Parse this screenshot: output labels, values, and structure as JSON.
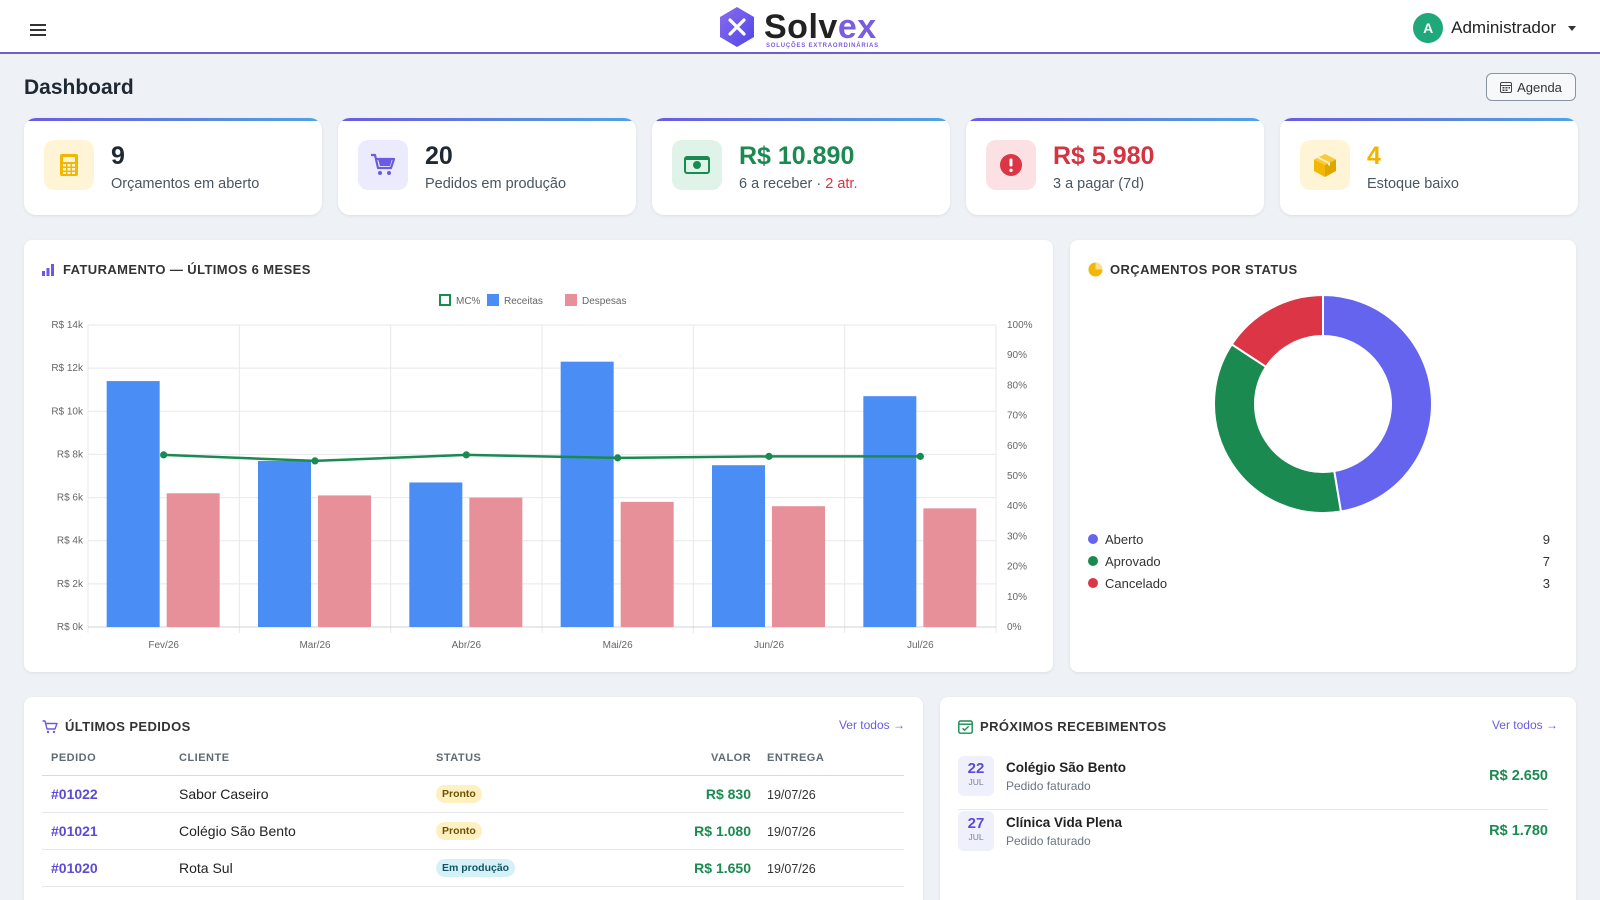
{
  "header": {
    "brand_name_a": "Solv",
    "brand_name_b": "ex",
    "brand_tagline": "SOLUÇÕES EXTRAORDINÁRIAS",
    "user_initial": "A",
    "user_name": "Administrador"
  },
  "page": {
    "title": "Dashboard",
    "agenda_label": "Agenda"
  },
  "kpis": [
    {
      "value": "9",
      "label": "Orçamentos em aberto",
      "icon": "calculator-icon",
      "value_color": "#1f2933"
    },
    {
      "value": "20",
      "label": "Pedidos em produção",
      "icon": "cart-icon",
      "value_color": "#1f2933"
    },
    {
      "value": "R$ 10.890",
      "label": "6 a receber · ",
      "label_late": "2 atr.",
      "icon": "money-icon",
      "value_color": "#1a8a50"
    },
    {
      "value": "R$ 5.980",
      "label": "3 a pagar (7d)",
      "icon": "alert-icon",
      "value_color": "#d63340"
    },
    {
      "value": "4",
      "label": "Estoque baixo",
      "icon": "box-icon",
      "value_color": "#f0b400"
    }
  ],
  "revenue_panel": {
    "title": "Faturamento — últimos 6 meses"
  },
  "status_panel": {
    "title": "Orçamentos por status"
  },
  "chart_data": [
    {
      "type": "bar",
      "title": "Faturamento — últimos 6 meses",
      "categories": [
        "Fev/26",
        "Mar/26",
        "Abr/26",
        "Mai/26",
        "Jun/26",
        "Jul/26"
      ],
      "series": [
        {
          "name": "Receitas",
          "type": "bar",
          "axis": "left",
          "color": "#4a8df5",
          "values": [
            11400,
            7700,
            6700,
            12300,
            7500,
            10700
          ]
        },
        {
          "name": "Despesas",
          "type": "bar",
          "axis": "left",
          "color": "#e8909a",
          "values": [
            6200,
            6100,
            6000,
            5800,
            5600,
            5500
          ]
        },
        {
          "name": "MC%",
          "type": "line",
          "axis": "right",
          "color": "#1a8a50",
          "values": [
            57,
            55,
            57,
            56,
            56.5,
            56.5
          ]
        }
      ],
      "y_left_ticks": [
        "R$ 0k",
        "R$ 2k",
        "R$ 4k",
        "R$ 6k",
        "R$ 8k",
        "R$ 10k",
        "R$ 12k",
        "R$ 14k"
      ],
      "y_right_ticks": [
        "0%",
        "10%",
        "20%",
        "30%",
        "40%",
        "50%",
        "60%",
        "70%",
        "80%",
        "90%",
        "100%"
      ],
      "ylim": [
        0,
        14000
      ],
      "ylim_right": [
        0,
        100
      ],
      "legend_order": [
        "MC%",
        "Receitas",
        "Despesas"
      ],
      "legend_position": "top-center",
      "grid": true
    },
    {
      "type": "pie",
      "donut": true,
      "title": "Orçamentos por status",
      "categories": [
        "Aberto",
        "Aprovado",
        "Cancelado"
      ],
      "values": [
        9,
        7,
        3
      ],
      "colors": [
        "#6464ee",
        "#1a8a50",
        "#dc3545"
      ]
    }
  ],
  "orders": {
    "title": "Últimos pedidos",
    "see_all": "Ver todos →",
    "columns": [
      "PEDIDO",
      "CLIENTE",
      "STATUS",
      "VALOR",
      "ENTREGA"
    ],
    "rows": [
      {
        "id": "#01022",
        "client": "Sabor Caseiro",
        "status": "Pronto",
        "status_kind": "pronto",
        "value": "R$ 830",
        "date": "19/07/26"
      },
      {
        "id": "#01021",
        "client": "Colégio São Bento",
        "status": "Pronto",
        "status_kind": "pronto",
        "value": "R$ 1.080",
        "date": "19/07/26"
      },
      {
        "id": "#01020",
        "client": "Rota Sul",
        "status": "Em produção",
        "status_kind": "prod",
        "value": "R$ 1.650",
        "date": "19/07/26"
      }
    ]
  },
  "receivables": {
    "title": "Próximos recebimentos",
    "see_all": "Ver todos →",
    "items": [
      {
        "day": "22",
        "month": "JUL",
        "name": "Colégio São Bento",
        "desc": "Pedido faturado",
        "value": "R$ 2.650"
      },
      {
        "day": "27",
        "month": "JUL",
        "name": "Clínica Vida Plena",
        "desc": "Pedido faturado",
        "value": "R$ 1.780"
      }
    ]
  }
}
